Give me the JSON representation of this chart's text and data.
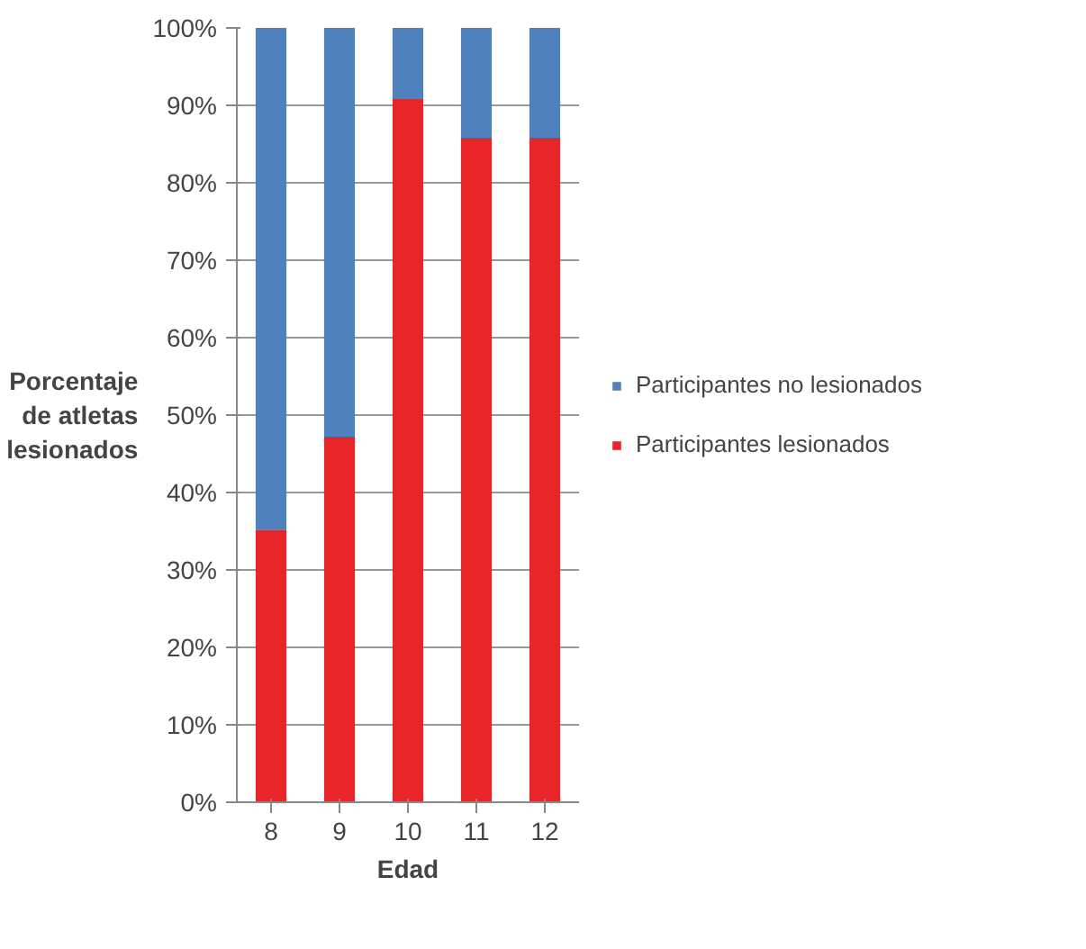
{
  "chart_data": {
    "type": "bar",
    "stacked": true,
    "xlabel": "Edad",
    "ylabel": "Porcentaje de atletas lesionados",
    "categories": [
      "8",
      "9",
      "10",
      "11",
      "12"
    ],
    "series": [
      {
        "name": "Participantes lesionados",
        "color": "#e8262a",
        "values": [
          35.2,
          47.2,
          90.8,
          85.8,
          85.8
        ]
      },
      {
        "name": "Participantes no lesionados",
        "color": "#4f81bd",
        "values": [
          64.8,
          52.8,
          9.2,
          14.2,
          14.2
        ]
      }
    ],
    "ylim": [
      0,
      100
    ],
    "yticks": [
      {
        "value": 0,
        "label": "0%"
      },
      {
        "value": 10,
        "label": "10%"
      },
      {
        "value": 20,
        "label": "20%"
      },
      {
        "value": 30,
        "label": "30%"
      },
      {
        "value": 40,
        "label": "40%"
      },
      {
        "value": 50,
        "label": "50%"
      },
      {
        "value": 60,
        "label": "60%"
      },
      {
        "value": 70,
        "label": "70%"
      },
      {
        "value": 80,
        "label": "80%"
      },
      {
        "value": 90,
        "label": "90%"
      },
      {
        "value": 100,
        "label": "100%"
      }
    ],
    "grid": "y",
    "legend": "right"
  }
}
